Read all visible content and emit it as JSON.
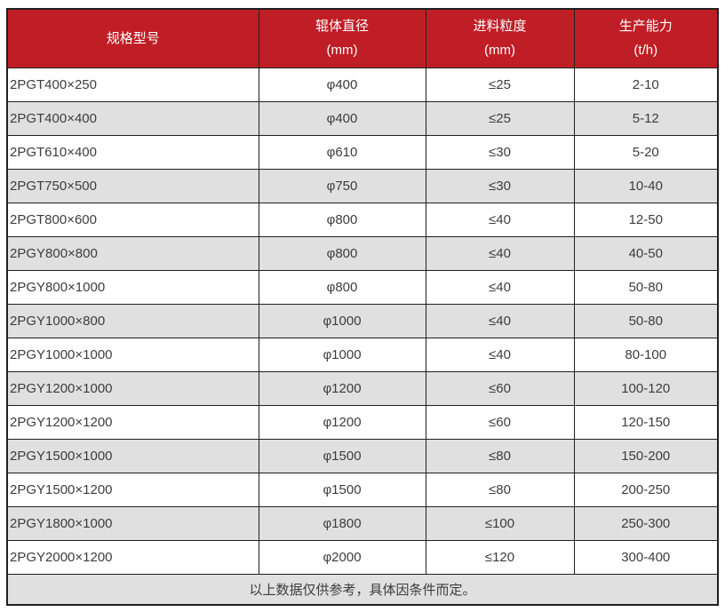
{
  "colors": {
    "header_bg": "#c01e26",
    "header_text": "#ffffff",
    "row_alt_bg": "#e0e0e0",
    "border": "#1f1f1f",
    "body_text": "#3d3d3d"
  },
  "table": {
    "headers": {
      "model": "规格型号",
      "diameter_label": "辊体直径",
      "diameter_unit": "(mm)",
      "feed_label": "进料粒度",
      "feed_unit": "(mm)",
      "capacity_label": "生产能力",
      "capacity_unit": "(t/h)"
    },
    "rows": [
      {
        "model": "2PGT400×250",
        "diameter": "φ400",
        "feed": "≤25",
        "capacity": "2-10"
      },
      {
        "model": "2PGT400×400",
        "diameter": "φ400",
        "feed": "≤25",
        "capacity": "5-12"
      },
      {
        "model": "2PGT610×400",
        "diameter": "φ610",
        "feed": "≤30",
        "capacity": "5-20"
      },
      {
        "model": "2PGT750×500",
        "diameter": "φ750",
        "feed": "≤30",
        "capacity": "10-40"
      },
      {
        "model": "2PGT800×600",
        "diameter": "φ800",
        "feed": "≤40",
        "capacity": "12-50"
      },
      {
        "model": "2PGY800×800",
        "diameter": "φ800",
        "feed": "≤40",
        "capacity": "40-50"
      },
      {
        "model": "2PGY800×1000",
        "diameter": "φ800",
        "feed": "≤40",
        "capacity": "50-80"
      },
      {
        "model": "2PGY1000×800",
        "diameter": "φ1000",
        "feed": "≤40",
        "capacity": "50-80"
      },
      {
        "model": "2PGY1000×1000",
        "diameter": "φ1000",
        "feed": "≤40",
        "capacity": "80-100"
      },
      {
        "model": "2PGY1200×1000",
        "diameter": "φ1200",
        "feed": "≤60",
        "capacity": "100-120"
      },
      {
        "model": "2PGY1200×1200",
        "diameter": "φ1200",
        "feed": "≤60",
        "capacity": "120-150"
      },
      {
        "model": "2PGY1500×1000",
        "diameter": "φ1500",
        "feed": "≤80",
        "capacity": "150-200"
      },
      {
        "model": "2PGY1500×1200",
        "diameter": "φ1500",
        "feed": "≤80",
        "capacity": "200-250"
      },
      {
        "model": "2PGY1800×1000",
        "diameter": "φ1800",
        "feed": "≤100",
        "capacity": "250-300"
      },
      {
        "model": "2PGY2000×1200",
        "diameter": "φ2000",
        "feed": "≤120",
        "capacity": "300-400"
      }
    ],
    "footnote": "以上数据仅供参考，具体因条件而定。"
  }
}
